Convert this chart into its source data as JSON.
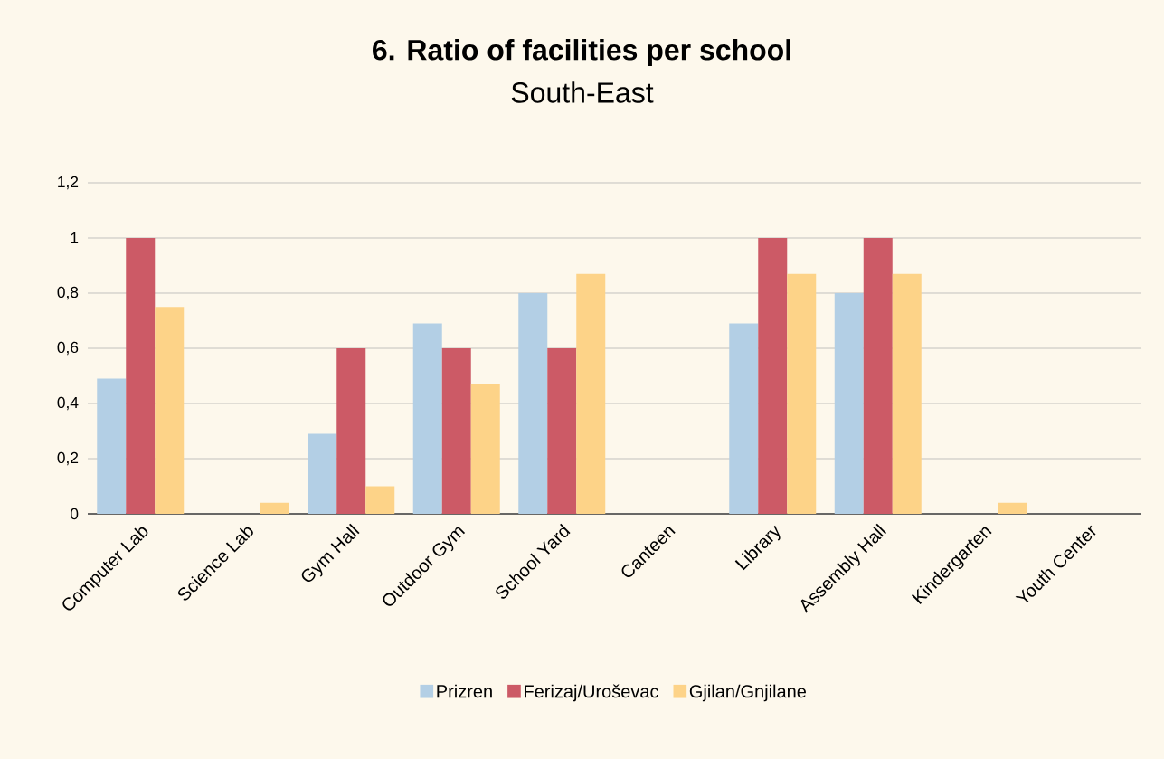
{
  "chart_data": {
    "type": "bar",
    "title": "6. Ratio of facilities per school",
    "subtitle": "South-East",
    "categories": [
      "Computer Lab",
      "Science Lab",
      "Gym Hall",
      "Outdoor Gym",
      "School Yard",
      "Canteen",
      "Library",
      "Assembly Hall",
      "Kindergarten",
      "Youth Center"
    ],
    "series": [
      {
        "name": "Prizren",
        "color": "#b3cfe5",
        "values": [
          0.49,
          0,
          0.29,
          0.69,
          0.8,
          0,
          0.69,
          0.8,
          0,
          0
        ]
      },
      {
        "name": "Ferizaj/Uroševac",
        "color": "#cc5a66",
        "values": [
          1,
          0,
          0.6,
          0.6,
          0.6,
          0,
          1,
          1,
          0,
          0
        ]
      },
      {
        "name": "Gjilan/Gnjilane",
        "color": "#fdd388",
        "values": [
          0.75,
          0.04,
          0.1,
          0.47,
          0.87,
          0,
          0.87,
          0.87,
          0.04,
          0
        ]
      }
    ],
    "ylim": [
      0,
      1.2
    ],
    "yticks": [
      0,
      {
        "value": 0.2,
        "label": "0,2"
      },
      {
        "value": 0.4,
        "label": "0,4"
      },
      {
        "value": 0.6,
        "label": "0,6"
      },
      {
        "value": 0.8,
        "label": "0,8"
      },
      1,
      {
        "value": 1.2,
        "label": "1,2"
      }
    ],
    "grid": "y",
    "legend": "bottom"
  }
}
